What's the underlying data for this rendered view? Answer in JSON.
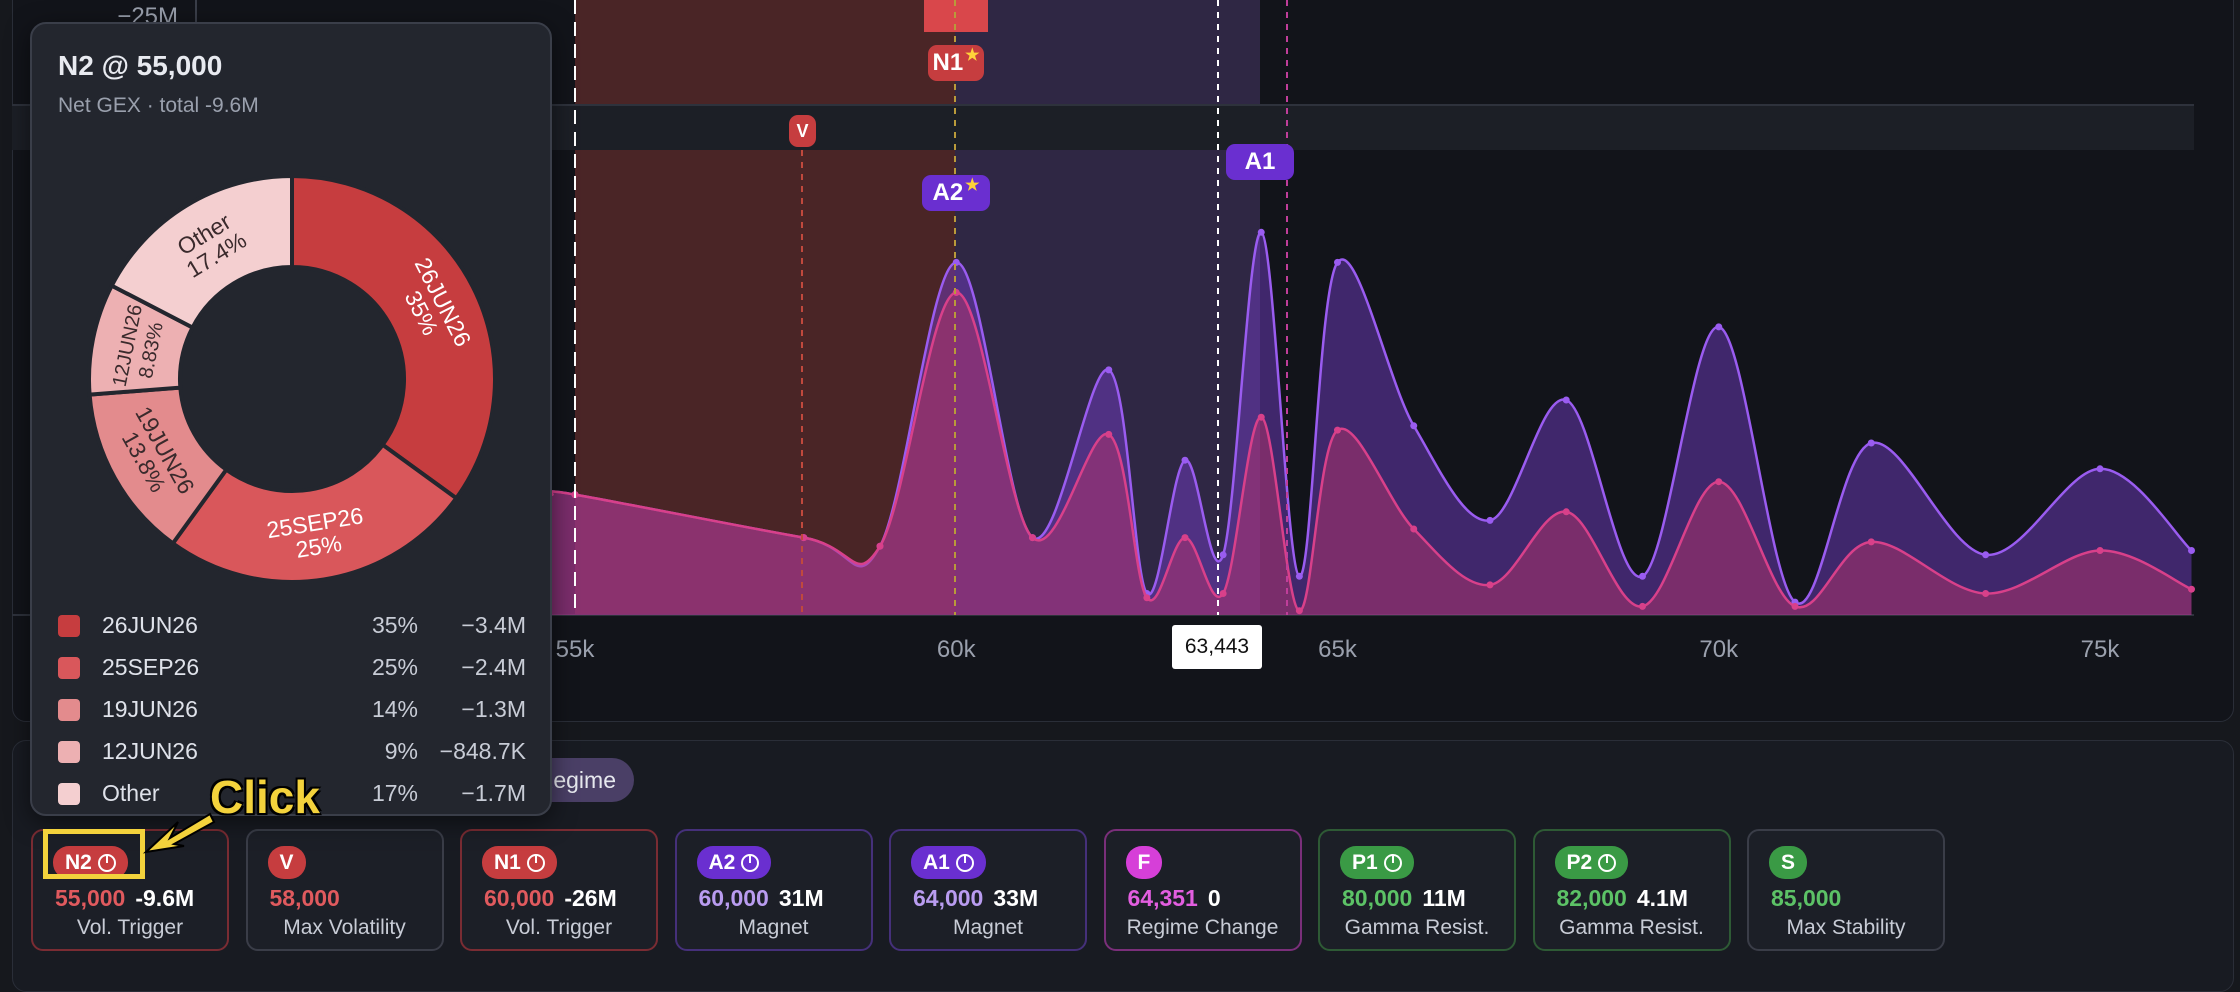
{
  "chart": {
    "top_axis_label": "−25M",
    "x_ticks": [
      "55k",
      "60k",
      "65k",
      "70k",
      "75k"
    ],
    "price_box": "63,443",
    "markers": {
      "N1": "N1",
      "V": "V",
      "A2": "A2",
      "A1": "A1"
    },
    "colors": {
      "series_total": "#7b3fd0",
      "series_selected": "#c0356a",
      "zone_red": "#4a2526",
      "zone_purple": "#2f2744"
    }
  },
  "chart_data": {
    "type": "area",
    "xlabel": "",
    "ylabel": "",
    "x_ticks_values": [
      55000,
      60000,
      65000,
      70000,
      75000
    ],
    "spot_price": 63443,
    "series": [
      {
        "x": [
          55000,
          58000,
          59000,
          60000,
          61000,
          62000,
          62500,
          63000,
          63500,
          64000,
          64500,
          65000,
          66000,
          67000,
          68000,
          69000,
          70000,
          71000,
          72000,
          73500,
          75000,
          76200
        ],
        "values": [
          0.28,
          0.18,
          0.16,
          0.82,
          0.18,
          0.57,
          0.05,
          0.36,
          0.14,
          0.89,
          0.09,
          0.82,
          0.44,
          0.22,
          0.5,
          0.09,
          0.67,
          0.03,
          0.4,
          0.14,
          0.34,
          0.15
        ]
      },
      {
        "x": [
          55000,
          58000,
          59000,
          60000,
          61000,
          62000,
          62500,
          63000,
          63500,
          64000,
          64500,
          65000,
          66000,
          67000,
          68000,
          69000,
          70000,
          71000,
          72000,
          73500,
          75000,
          76200
        ],
        "values": [
          0.28,
          0.18,
          0.16,
          0.75,
          0.18,
          0.42,
          0.04,
          0.18,
          0.05,
          0.46,
          0.01,
          0.43,
          0.2,
          0.07,
          0.24,
          0.02,
          0.31,
          0.02,
          0.17,
          0.05,
          0.15,
          0.06
        ]
      }
    ]
  },
  "tooltip": {
    "title": "N2 @ 55,000",
    "subtitle": "Net GEX · total -9.6M",
    "donut": [
      {
        "label": "26JUN26",
        "pct_label": "35%",
        "value": 35,
        "color": "#c63d3f"
      },
      {
        "label": "25SEP26",
        "pct_label": "25%",
        "value": 25,
        "color": "#d9575b"
      },
      {
        "label": "19JUN26",
        "pct_label": "13.8%",
        "value": 13.8,
        "color": "#e38b8d"
      },
      {
        "label": "12JUN26",
        "pct_label": "8.83%",
        "value": 8.83,
        "color": "#edb0b2"
      },
      {
        "label": "Other",
        "pct_label": "17.4%",
        "value": 17.4,
        "color": "#f4cfd0"
      }
    ],
    "legend": [
      {
        "name": "26JUN26",
        "pct": "35%",
        "val": "−3.4M",
        "color": "#c63d3f"
      },
      {
        "name": "25SEP26",
        "pct": "25%",
        "val": "−2.4M",
        "color": "#d9575b"
      },
      {
        "name": "19JUN26",
        "pct": "14%",
        "val": "−1.3M",
        "color": "#e38b8d"
      },
      {
        "name": "12JUN26",
        "pct": "9%",
        "val": "−848.7K",
        "color": "#edb0b2"
      },
      {
        "name": "Other",
        "pct": "17%",
        "val": "−1.7M",
        "color": "#f4cfd0"
      }
    ]
  },
  "regime_pill": "Regime",
  "cards": [
    {
      "tag": "N2",
      "pie": true,
      "badge_color": "#c63d3f",
      "border": "#7a2c33",
      "level": "55,000",
      "level_color": "#e05a5e",
      "gex": "-9.6M",
      "desc": "Vol. Trigger"
    },
    {
      "tag": "V",
      "pie": false,
      "badge_color": "#c63d3f",
      "border": "#3a3d48",
      "level": "58,000",
      "level_color": "#e05a5e",
      "gex": "",
      "desc": "Max Volatility"
    },
    {
      "tag": "N1",
      "pie": true,
      "badge_color": "#c63d3f",
      "border": "#7a2c33",
      "level": "60,000",
      "level_color": "#e05a5e",
      "gex": "-26M",
      "desc": "Vol. Trigger"
    },
    {
      "tag": "A2",
      "pie": true,
      "badge_color": "#6a2fd0",
      "border": "#45307a",
      "level": "60,000",
      "level_color": "#b99cf0",
      "gex": "31M",
      "desc": "Magnet"
    },
    {
      "tag": "A1",
      "pie": true,
      "badge_color": "#6a2fd0",
      "border": "#45307a",
      "level": "64,000",
      "level_color": "#b99cf0",
      "gex": "33M",
      "desc": "Magnet"
    },
    {
      "tag": "F",
      "pie": false,
      "badge_color": "#d63fd8",
      "border": "#7a2f7a",
      "level": "64,351",
      "level_color": "#e35ee0",
      "gex": "0",
      "desc": "Regime Change"
    },
    {
      "tag": "P1",
      "pie": true,
      "badge_color": "#3a9a45",
      "border": "#2e5a35",
      "level": "80,000",
      "level_color": "#5cc266",
      "gex": "11M",
      "desc": "Gamma Resist."
    },
    {
      "tag": "P2",
      "pie": true,
      "badge_color": "#3a9a45",
      "border": "#2e5a35",
      "level": "82,000",
      "level_color": "#5cc266",
      "gex": "4.1M",
      "desc": "Gamma Resist."
    },
    {
      "tag": "S",
      "pie": false,
      "badge_color": "#3a9a45",
      "border": "#3a3d48",
      "level": "85,000",
      "level_color": "#5cc266",
      "gex": "",
      "desc": "Max Stability"
    }
  ],
  "annotation": {
    "click_label": "Click"
  }
}
